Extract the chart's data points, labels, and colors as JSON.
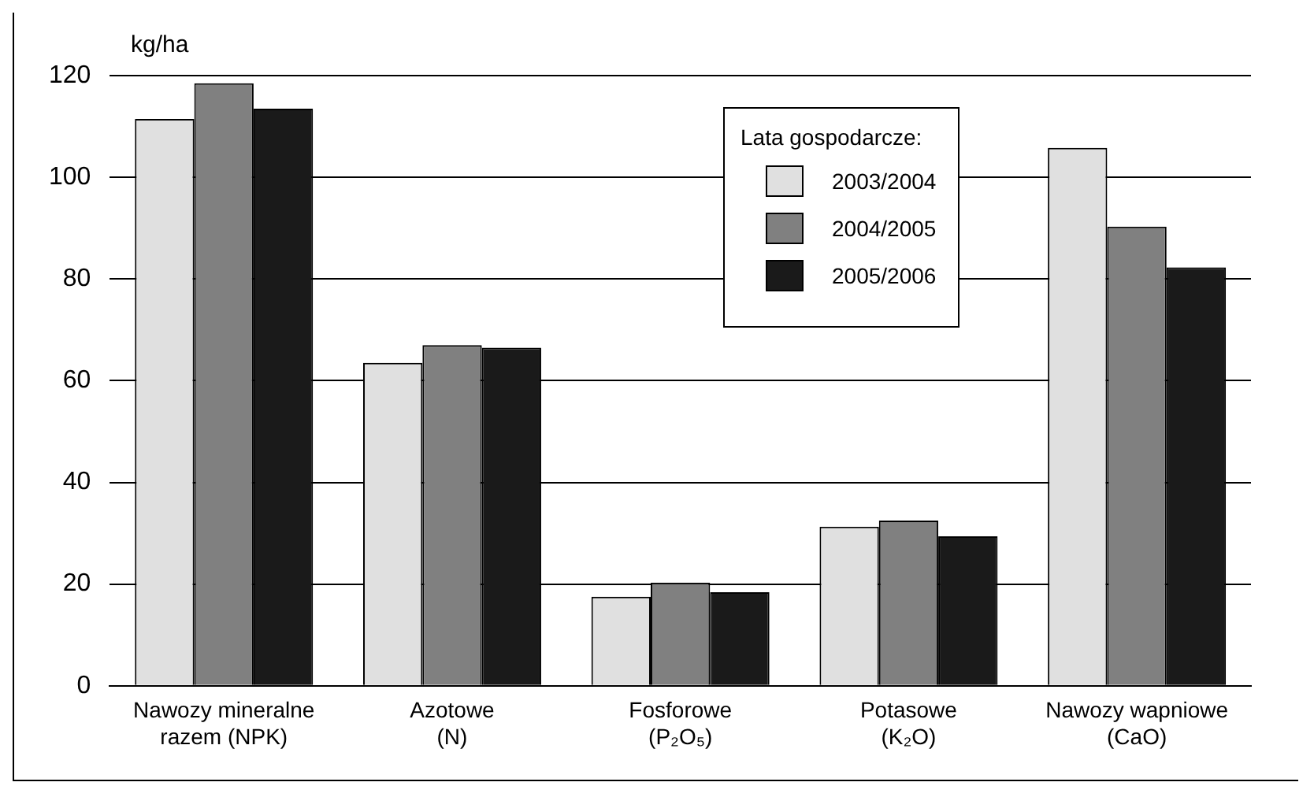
{
  "chart_data": {
    "type": "bar",
    "ylabel": "kg/ha",
    "legend_title": "Lata gospodarcze:",
    "legend": "top",
    "grid": "y",
    "categories": [
      "Nawozy mineralne\nrazem (NPK)",
      "Azotowe\n(N)",
      "Fosforowe\n(P₂O₅)",
      "Potasowe\n(K₂O)",
      "Nawozy wapniowe\n(CaO)"
    ],
    "ylim": [
      0,
      120
    ],
    "yticks": [
      0,
      20,
      40,
      60,
      80,
      100,
      120
    ],
    "series": [
      {
        "name": "2003/2004",
        "color": "#e0e0e0",
        "values": [
          111.5,
          63.5,
          17.5,
          31.3,
          105.8
        ]
      },
      {
        "name": "2004/2005",
        "color": "#808080",
        "values": [
          118.5,
          67,
          20.3,
          32.5,
          90.3
        ]
      },
      {
        "name": "2005/2006",
        "color": "#1a1a1a",
        "values": [
          113.5,
          66.5,
          18.4,
          29.4,
          82.3
        ]
      }
    ]
  }
}
